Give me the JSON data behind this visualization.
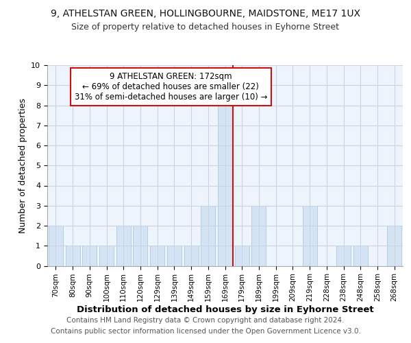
{
  "title1": "9, ATHELSTAN GREEN, HOLLINGBOURNE, MAIDSTONE, ME17 1UX",
  "title2": "Size of property relative to detached houses in Eyhorne Street",
  "xlabel": "Distribution of detached houses by size in Eyhorne Street",
  "ylabel": "Number of detached properties",
  "categories": [
    "70sqm",
    "80sqm",
    "90sqm",
    "100sqm",
    "110sqm",
    "120sqm",
    "129sqm",
    "139sqm",
    "149sqm",
    "159sqm",
    "169sqm",
    "179sqm",
    "189sqm",
    "199sqm",
    "209sqm",
    "219sqm",
    "228sqm",
    "238sqm",
    "248sqm",
    "258sqm",
    "268sqm"
  ],
  "values": [
    2,
    1,
    1,
    1,
    2,
    2,
    1,
    1,
    1,
    3,
    8,
    1,
    3,
    0,
    0,
    3,
    0,
    1,
    1,
    0,
    2
  ],
  "bar_color": "#d4e4f4",
  "bar_edge_color": "#b0c8dc",
  "vline_x_index": 10.45,
  "vline_color": "#cc1111",
  "annotation_title": "9 ATHELSTAN GREEN: 172sqm",
  "annotation_line2": "← 69% of detached houses are smaller (22)",
  "annotation_line3": "31% of semi-detached houses are larger (10) →",
  "annotation_box_color": "#cc1111",
  "ylim": [
    0,
    10
  ],
  "yticks": [
    0,
    1,
    2,
    3,
    4,
    5,
    6,
    7,
    8,
    9,
    10
  ],
  "grid_color": "#c8d4e4",
  "background_color": "#ffffff",
  "plot_bg_color": "#eef4fc",
  "footer1": "Contains HM Land Registry data © Crown copyright and database right 2024.",
  "footer2": "Contains public sector information licensed under the Open Government Licence v3.0.",
  "title1_fontsize": 10,
  "title2_fontsize": 9,
  "xlabel_fontsize": 9.5,
  "ylabel_fontsize": 9,
  "tick_fontsize": 7.5,
  "annotation_fontsize": 8.5,
  "footer_fontsize": 7.5
}
